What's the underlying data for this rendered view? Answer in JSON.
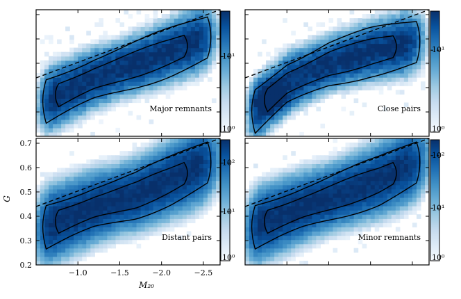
{
  "chart_data": [
    {
      "type": "heatmap",
      "panel_label": "Major remnants",
      "colorbar": {
        "scale": "log",
        "range": [
          1,
          40
        ],
        "tick_labels": [
          "10⁰",
          "10¹"
        ],
        "tick_values": [
          1,
          10
        ]
      },
      "x_centerline": [
        [
          -0.7,
          0.36
        ],
        [
          -1.2,
          0.44
        ],
        [
          -1.7,
          0.5
        ],
        [
          -2.1,
          0.55
        ],
        [
          -2.4,
          0.59
        ]
      ],
      "peak_density": 40
    },
    {
      "type": "heatmap",
      "panel_label": "Close pairs",
      "colorbar": {
        "scale": "log",
        "range": [
          1,
          30
        ],
        "tick_labels": [
          "10⁰",
          "10¹"
        ],
        "tick_values": [
          1,
          10
        ]
      },
      "x_centerline": [
        [
          -0.7,
          0.33
        ],
        [
          -1.0,
          0.42
        ],
        [
          -1.5,
          0.5
        ],
        [
          -2.0,
          0.55
        ],
        [
          -2.4,
          0.58
        ]
      ],
      "peak_density": 30
    },
    {
      "type": "heatmap",
      "panel_label": "Distant pairs",
      "colorbar": {
        "scale": "log",
        "range": [
          1,
          300
        ],
        "tick_labels": [
          "10⁰",
          "10¹",
          "10²"
        ],
        "tick_values": [
          1,
          10,
          100
        ]
      },
      "x_centerline": [
        [
          -0.7,
          0.37
        ],
        [
          -1.2,
          0.44
        ],
        [
          -1.7,
          0.49
        ],
        [
          -2.1,
          0.55
        ],
        [
          -2.4,
          0.6
        ]
      ],
      "peak_density": 300
    },
    {
      "type": "heatmap",
      "panel_label": "Minor remnants",
      "colorbar": {
        "scale": "log",
        "range": [
          1,
          200
        ],
        "tick_labels": [
          "10⁰",
          "10¹",
          "10²"
        ],
        "tick_values": [
          1,
          10,
          100
        ]
      },
      "x_centerline": [
        [
          -0.7,
          0.37
        ],
        [
          -1.2,
          0.44
        ],
        [
          -1.7,
          0.5
        ],
        [
          -2.1,
          0.55
        ],
        [
          -2.4,
          0.6
        ]
      ],
      "peak_density": 200
    }
  ],
  "axes": {
    "xlabel": "M₂₀",
    "ylabel": "G",
    "xlim": [
      -0.5,
      -2.7
    ],
    "ylim": [
      0.2,
      0.72
    ],
    "x_ticks": [
      -1.0,
      -1.5,
      -2.0,
      -2.5
    ],
    "x_tick_labels": [
      "−1.0",
      "−1.5",
      "−2.0",
      "−2.5"
    ],
    "y_ticks": [
      0.2,
      0.3,
      0.4,
      0.5,
      0.6,
      0.7
    ],
    "y_tick_labels": [
      "0.2",
      "0.3",
      "0.4",
      "0.5",
      "0.6",
      "0.7"
    ]
  },
  "merger_line": {
    "style": "dashed",
    "points": [
      [
        -0.5,
        0.44
      ],
      [
        -2.7,
        0.72
      ]
    ]
  },
  "colors": {
    "low": "#f7fbff",
    "high": "#08306b",
    "line": "#000000"
  }
}
